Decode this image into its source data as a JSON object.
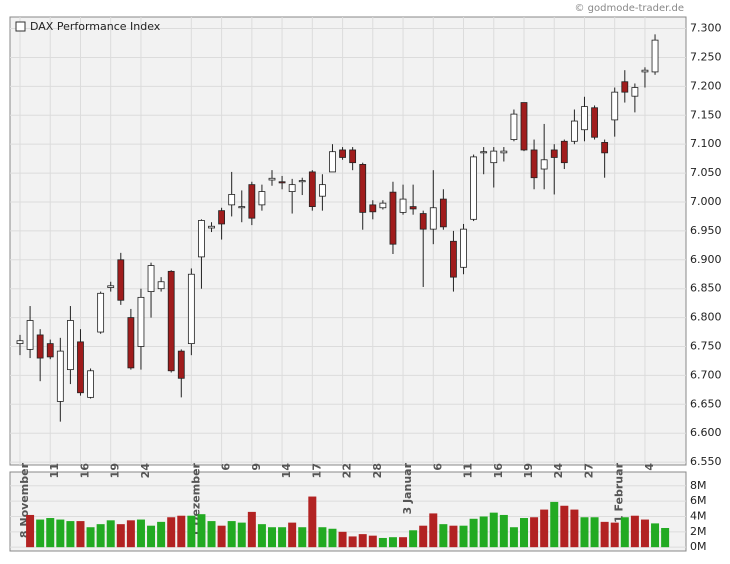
{
  "chart_data": {
    "type": "candlestick",
    "title": "DAX Performance Index",
    "source": "© godmode-trader.de",
    "categories": [
      "8 November",
      null,
      null,
      "11",
      null,
      null,
      "16",
      null,
      null,
      "19",
      null,
      null,
      "24",
      null,
      null,
      null,
      null,
      "1 Dezember",
      null,
      null,
      "6",
      null,
      null,
      "9",
      null,
      null,
      "14",
      null,
      null,
      "17",
      null,
      null,
      "22",
      null,
      null,
      "28",
      null,
      null,
      "3 Januar",
      null,
      null,
      "6",
      null,
      null,
      "11",
      null,
      null,
      "16",
      null,
      null,
      "19",
      null,
      null,
      "24",
      null,
      null,
      "27",
      null,
      null,
      "1 Februar",
      null,
      null,
      "4",
      null
    ],
    "series": [
      {
        "name": "open",
        "values": [
          6755,
          6745,
          6770,
          6755,
          6655,
          6710,
          6758,
          6662,
          6775,
          6852,
          6900,
          6800,
          6750,
          6845,
          6850,
          6880,
          6742,
          6755,
          6905,
          6955,
          6985,
          6995,
          6990,
          7030,
          6995,
          7038,
          7035,
          7018,
          7035,
          7052,
          7010,
          7052,
          7090,
          7090,
          7065,
          6995,
          6990,
          7017,
          6982,
          6992,
          6980,
          6953,
          7005,
          6932,
          6887,
          6970,
          7085,
          7068,
          7085,
          7108,
          7172,
          7090,
          7057,
          7090,
          7105,
          7105,
          7125,
          7163,
          7103,
          7142,
          7208,
          7183,
          7225,
          7225
        ]
      },
      {
        "name": "high",
        "values": [
          6770,
          6820,
          6780,
          6762,
          6765,
          6820,
          6780,
          6712,
          6845,
          6862,
          6912,
          6815,
          6850,
          6895,
          6870,
          6882,
          6745,
          6885,
          6970,
          6965,
          6990,
          7052,
          7020,
          7035,
          7030,
          7055,
          7045,
          7040,
          7042,
          7055,
          7048,
          7100,
          7095,
          7095,
          7068,
          7003,
          7003,
          7035,
          7030,
          7030,
          6985,
          7055,
          7022,
          6950,
          6962,
          7082,
          7095,
          7095,
          7095,
          7160,
          7172,
          7108,
          7135,
          7100,
          7108,
          7160,
          7182,
          7167,
          7108,
          7198,
          7228,
          7205,
          7233,
          7290
        ]
      },
      {
        "name": "low",
        "values": [
          6735,
          6730,
          6690,
          6728,
          6620,
          6685,
          6665,
          6660,
          6772,
          6845,
          6822,
          6710,
          6710,
          6800,
          6845,
          6705,
          6662,
          6735,
          6850,
          6948,
          6935,
          6975,
          6965,
          6960,
          6985,
          7028,
          7022,
          6980,
          7012,
          6985,
          6985,
          7052,
          7073,
          7055,
          6952,
          6970,
          6987,
          6910,
          6978,
          6978,
          6853,
          6927,
          6952,
          6845,
          6875,
          6967,
          7048,
          7025,
          7070,
          7105,
          7088,
          7022,
          7022,
          7013,
          7057,
          7100,
          7105,
          7108,
          7042,
          7113,
          7172,
          7155,
          7198,
          7220
        ]
      },
      {
        "name": "close",
        "values": [
          6760,
          6795,
          6730,
          6732,
          6742,
          6795,
          6670,
          6708,
          6842,
          6855,
          6830,
          6713,
          6835,
          6890,
          6862,
          6708,
          6695,
          6875,
          6968,
          6958,
          6962,
          7013,
          6992,
          6972,
          7018,
          7041,
          7033,
          7030,
          7037,
          6992,
          7030,
          7087,
          7077,
          7068,
          6982,
          6983,
          6998,
          6927,
          7005,
          6988,
          6953,
          6990,
          6957,
          6870,
          6953,
          7078,
          7087,
          7088,
          7088,
          7152,
          7090,
          7042,
          7073,
          7077,
          7068,
          7140,
          7165,
          7112,
          7085,
          7190,
          7190,
          7198,
          7228,
          7280
        ]
      }
    ],
    "up_color": "#ffffff",
    "down_color": "#a01c1c",
    "ylim": [
      6545,
      7320
    ],
    "yticks": [
      {
        "value": 6550,
        "label": "6.550"
      },
      {
        "value": 6600,
        "label": "6.600"
      },
      {
        "value": 6650,
        "label": "6.650"
      },
      {
        "value": 6700,
        "label": "6.700"
      },
      {
        "value": 6750,
        "label": "6.750"
      },
      {
        "value": 6800,
        "label": "6.800"
      },
      {
        "value": 6850,
        "label": "6.850"
      },
      {
        "value": 6900,
        "label": "6.900"
      },
      {
        "value": 6950,
        "label": "6.950"
      },
      {
        "value": 7000,
        "label": "7.000"
      },
      {
        "value": 7050,
        "label": "7.050"
      },
      {
        "value": 7100,
        "label": "7.100"
      },
      {
        "value": 7150,
        "label": "7.150"
      },
      {
        "value": 7200,
        "label": "7.200"
      },
      {
        "value": 7250,
        "label": "7.250"
      },
      {
        "value": 7300,
        "label": "7.300"
      }
    ],
    "grid": true,
    "volume": {
      "values": [
        4.2,
        3.6,
        3.8,
        3.6,
        3.4,
        3.4,
        2.6,
        3.0,
        3.5,
        3.0,
        3.5,
        3.6,
        2.8,
        3.3,
        3.9,
        4.1,
        4.1,
        4.3,
        3.4,
        2.8,
        3.4,
        3.2,
        4.6,
        3.0,
        2.6,
        2.6,
        3.2,
        2.6,
        6.6,
        2.6,
        2.4,
        2.0,
        1.4,
        1.7,
        1.5,
        1.2,
        1.3,
        1.3,
        2.2,
        2.8,
        4.4,
        3.0,
        2.8,
        2.8,
        3.7,
        4.0,
        4.5,
        4.2,
        2.6,
        3.8,
        3.9,
        4.9,
        5.9,
        5.4,
        4.9,
        3.9,
        3.9,
        3.3,
        3.2,
        3.9,
        4.1,
        3.6,
        3.1,
        2.5
      ],
      "colors": [
        "#b22222",
        "#22aa22",
        "#22aa22",
        "#22aa22",
        "#22aa22",
        "#b22222",
        "#22aa22",
        "#22aa22",
        "#22aa22",
        "#b22222",
        "#b22222",
        "#22aa22",
        "#22aa22",
        "#22aa22",
        "#b22222",
        "#b22222",
        "#22aa22",
        "#22aa22",
        "#22aa22",
        "#b22222",
        "#22aa22",
        "#22aa22",
        "#b22222",
        "#22aa22",
        "#22aa22",
        "#22aa22",
        "#b22222",
        "#22aa22",
        "#b22222",
        "#22aa22",
        "#22aa22",
        "#b22222",
        "#b22222",
        "#b22222",
        "#b22222",
        "#22aa22",
        "#22aa22",
        "#b22222",
        "#22aa22",
        "#b22222",
        "#b22222",
        "#22aa22",
        "#b22222",
        "#22aa22",
        "#22aa22",
        "#22aa22",
        "#22aa22",
        "#22aa22",
        "#22aa22",
        "#22aa22",
        "#b22222",
        "#b22222",
        "#22aa22",
        "#b22222",
        "#b22222",
        "#22aa22",
        "#22aa22",
        "#b22222",
        "#b22222",
        "#22aa22",
        "#b22222",
        "#b22222",
        "#22aa22",
        "#22aa22"
      ],
      "ylim": [
        -0.5,
        9.8
      ],
      "yticks": [
        {
          "value": 0,
          "label": "0M"
        },
        {
          "value": 2,
          "label": "2M"
        },
        {
          "value": 4,
          "label": "4M"
        },
        {
          "value": 6,
          "label": "6M"
        },
        {
          "value": 8,
          "label": "8M"
        }
      ]
    }
  }
}
